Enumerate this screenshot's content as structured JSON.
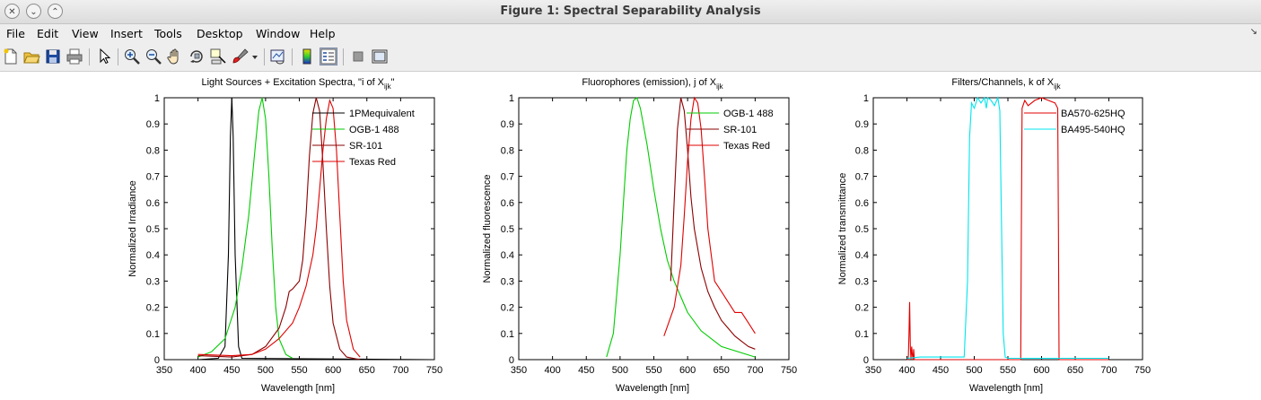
{
  "window": {
    "title": "Figure 1: Spectral Separability Analysis"
  },
  "menu": [
    "File",
    "Edit",
    "View",
    "Insert",
    "Tools",
    "Desktop",
    "Window",
    "Help"
  ],
  "toolbar": [
    "new-figure",
    "open-file",
    "save-figure",
    "print-figure",
    "edit-plot",
    "zoom-in",
    "zoom-out",
    "pan",
    "rotate-3d",
    "data-cursor",
    "brush",
    "brush-dropdown",
    "link-plot",
    "insert-colorbar",
    "insert-legend",
    "hide-plot-tools",
    "show-plot-tools"
  ],
  "colors": {
    "black": "#000000",
    "green": "#00cc00",
    "darkred": "#8b0000",
    "red": "#e00000",
    "cyan": "#00e5ee"
  },
  "chart_data": [
    {
      "type": "line",
      "title_main": "Light Sources + Excitation Spectra, \"i of X",
      "title_sub": "ijk",
      "title_end": "\"",
      "xlabel": "Wavelength [nm]",
      "ylabel": "Normalized Irradiance",
      "xlim": [
        350,
        750
      ],
      "ylim": [
        0,
        1
      ],
      "xticks": [
        "350",
        "400",
        "450",
        "500",
        "550",
        "600",
        "650",
        "700",
        "750"
      ],
      "yticks": [
        "0",
        "0.1",
        "0.2",
        "0.3",
        "0.4",
        "0.5",
        "0.6",
        "0.7",
        "0.8",
        "0.9",
        "1"
      ],
      "legend_position": "top-right",
      "series": [
        {
          "name": "1PMequivalent",
          "color": "#000000",
          "x": [
            400,
            430,
            440,
            445,
            448,
            450,
            452,
            455,
            460,
            465,
            750
          ],
          "y": [
            0,
            0.005,
            0.05,
            0.4,
            0.85,
            1.0,
            0.85,
            0.4,
            0.05,
            0.005,
            0
          ]
        },
        {
          "name": "OGB-1 488",
          "color": "#00cc00",
          "x": [
            400,
            420,
            440,
            455,
            465,
            475,
            485,
            490,
            495,
            500,
            505,
            510,
            515,
            520,
            530,
            540
          ],
          "y": [
            0.01,
            0.03,
            0.08,
            0.2,
            0.35,
            0.55,
            0.82,
            0.95,
            1.0,
            0.92,
            0.7,
            0.42,
            0.2,
            0.08,
            0.02,
            0.005
          ]
        },
        {
          "name": "SR-101",
          "color": "#8b0000",
          "x": [
            400,
            450,
            480,
            500,
            520,
            530,
            535,
            540,
            550,
            555,
            560,
            565,
            570,
            575,
            580,
            585,
            590,
            595,
            600,
            610,
            620,
            640
          ],
          "y": [
            0.015,
            0.01,
            0.02,
            0.05,
            0.12,
            0.2,
            0.26,
            0.27,
            0.3,
            0.38,
            0.55,
            0.78,
            0.94,
            1.0,
            0.95,
            0.75,
            0.5,
            0.28,
            0.14,
            0.04,
            0.01,
            0.0
          ]
        },
        {
          "name": "Texas Red",
          "color": "#e00000",
          "x": [
            400,
            450,
            480,
            500,
            520,
            540,
            550,
            560,
            570,
            575,
            580,
            585,
            590,
            595,
            600,
            605,
            610,
            615,
            620,
            630,
            640
          ],
          "y": [
            0.02,
            0.015,
            0.02,
            0.04,
            0.08,
            0.14,
            0.2,
            0.28,
            0.4,
            0.5,
            0.65,
            0.8,
            0.92,
            0.99,
            0.96,
            0.8,
            0.55,
            0.3,
            0.15,
            0.04,
            0.01
          ]
        }
      ]
    },
    {
      "type": "line",
      "title_main": "Fluorophores (emission), j of X",
      "title_sub": "ijk",
      "title_end": "",
      "xlabel": "Wavelength [nm]",
      "ylabel": "Normalized fluorescence",
      "xlim": [
        350,
        750
      ],
      "ylim": [
        0,
        1
      ],
      "xticks": [
        "350",
        "400",
        "450",
        "500",
        "550",
        "600",
        "650",
        "700",
        "750"
      ],
      "yticks": [
        "0",
        "0.1",
        "0.2",
        "0.3",
        "0.4",
        "0.5",
        "0.6",
        "0.7",
        "0.8",
        "0.9",
        "1"
      ],
      "legend_position": "top-right",
      "series": [
        {
          "name": "OGB-1 488",
          "color": "#00cc00",
          "x": [
            480,
            490,
            500,
            505,
            510,
            515,
            520,
            525,
            530,
            540,
            550,
            560,
            570,
            580,
            600,
            620,
            650,
            700
          ],
          "y": [
            0.01,
            0.1,
            0.4,
            0.6,
            0.8,
            0.92,
            0.99,
            1.0,
            0.96,
            0.82,
            0.65,
            0.5,
            0.38,
            0.3,
            0.18,
            0.11,
            0.05,
            0.01
          ]
        },
        {
          "name": "SR-101",
          "color": "#8b0000",
          "x": [
            575,
            580,
            585,
            590,
            595,
            600,
            605,
            610,
            620,
            630,
            640,
            650,
            660,
            670,
            680,
            690,
            700
          ],
          "y": [
            0.3,
            0.6,
            0.88,
            1.0,
            0.95,
            0.8,
            0.62,
            0.5,
            0.35,
            0.26,
            0.2,
            0.15,
            0.12,
            0.09,
            0.07,
            0.05,
            0.04
          ]
        },
        {
          "name": "Texas Red",
          "color": "#e00000",
          "x": [
            565,
            580,
            590,
            595,
            600,
            605,
            610,
            615,
            620,
            625,
            630,
            640,
            650,
            660,
            670,
            680,
            690,
            700
          ],
          "y": [
            0.09,
            0.2,
            0.36,
            0.55,
            0.76,
            0.92,
            1.0,
            0.98,
            0.88,
            0.7,
            0.5,
            0.3,
            0.26,
            0.22,
            0.18,
            0.18,
            0.14,
            0.1
          ]
        }
      ]
    },
    {
      "type": "line",
      "title_main": "Filters/Channels, k of X",
      "title_sub": "ijk",
      "title_end": "",
      "xlabel": "Wavelength [nm]",
      "ylabel": "Normalized transmittance",
      "xlim": [
        350,
        750
      ],
      "ylim": [
        0,
        1
      ],
      "xticks": [
        "350",
        "400",
        "450",
        "500",
        "550",
        "600",
        "650",
        "700",
        "750"
      ],
      "yticks": [
        "0",
        "0.1",
        "0.2",
        "0.3",
        "0.4",
        "0.5",
        "0.6",
        "0.7",
        "0.8",
        "0.9",
        "1"
      ],
      "legend_position": "top-right",
      "series": [
        {
          "name": "BA570-625HQ",
          "color": "#e00000",
          "x": [
            400,
            402,
            403,
            404,
            405,
            406,
            407,
            408,
            409,
            410,
            411,
            412,
            415,
            420,
            560,
            569,
            570,
            571,
            575,
            580,
            590,
            600,
            610,
            620,
            624,
            625,
            626,
            630,
            700
          ],
          "y": [
            0,
            0,
            0.1,
            0.22,
            0.05,
            0,
            0.05,
            0.02,
            0,
            0.04,
            0,
            0,
            0,
            0,
            0,
            0,
            0.5,
            0.96,
            0.99,
            0.97,
            0.99,
            1.0,
            0.99,
            0.98,
            0.96,
            0.5,
            0,
            0,
            0
          ]
        },
        {
          "name": "BA495-540HQ",
          "color": "#00e5ee",
          "x": [
            400,
            420,
            460,
            485,
            490,
            493,
            496,
            500,
            505,
            510,
            515,
            518,
            520,
            525,
            530,
            535,
            538,
            540,
            543,
            546,
            550,
            560,
            600,
            650,
            700
          ],
          "y": [
            0.005,
            0.01,
            0.01,
            0.01,
            0.3,
            0.85,
            0.98,
            0.96,
            1.0,
            0.98,
            1.0,
            0.96,
            1.0,
            0.99,
            0.97,
            1.0,
            0.95,
            0.6,
            0.1,
            0.01,
            0.005,
            0.005,
            0.005,
            0.005,
            0.005
          ]
        }
      ]
    }
  ]
}
